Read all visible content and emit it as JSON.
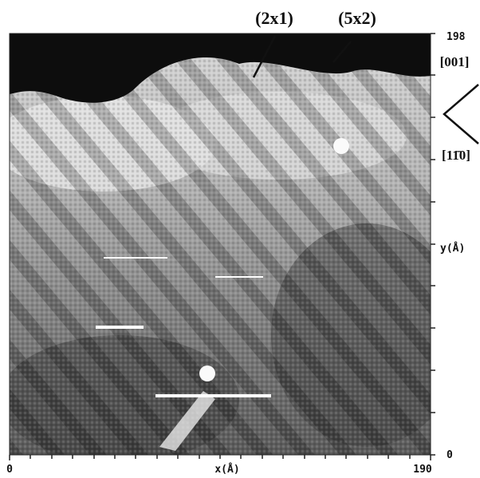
{
  "annotations": {
    "domain_a": "(2x1)",
    "domain_b": "(5x2)",
    "direction_a": "[001]",
    "direction_b": "[11̄0]"
  },
  "x_axis": {
    "label": "x(Å)",
    "ticks": [
      0,
      190
    ]
  },
  "y_axis": {
    "label": "y(Å)",
    "ticks": [
      198,
      0
    ]
  }
}
